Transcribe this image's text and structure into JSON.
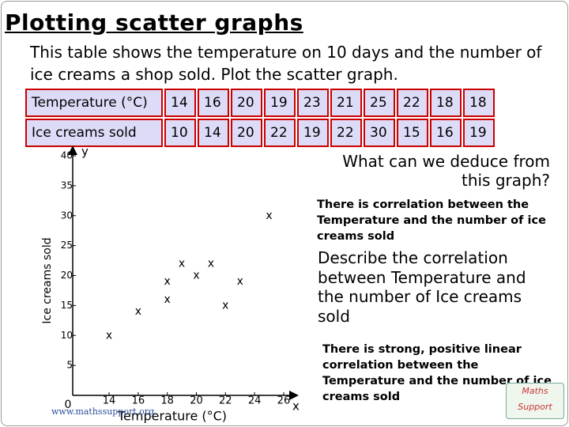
{
  "title": "Plotting scatter graphs",
  "intro": "This table shows the temperature on 10 days and the number of ice creams a shop sold. Plot the scatter graph.",
  "table": {
    "rows": [
      [
        "Temperature (°C)",
        14,
        16,
        20,
        19,
        23,
        21,
        25,
        22,
        18,
        18
      ],
      [
        "Ice creams sold",
        10,
        14,
        20,
        22,
        19,
        22,
        30,
        15,
        16,
        19
      ]
    ]
  },
  "chart_data": {
    "type": "scatter",
    "x_label": "Temperature (°C)",
    "y_label": "Ice creams sold",
    "x_axis_letter": "x",
    "y_axis_letter": "y",
    "origin_label": "0",
    "marker": "x",
    "series": [
      {
        "color": "#000000",
        "x": [
          14,
          16,
          20,
          19,
          23,
          21,
          25,
          22,
          18,
          18
        ],
        "values": [
          10,
          14,
          20,
          22,
          19,
          22,
          30,
          15,
          16,
          19
        ]
      }
    ],
    "xlim": [
      11.5,
      26.6
    ],
    "xticks": [
      14,
      16,
      18,
      20,
      22,
      24,
      26
    ],
    "ylim": [
      0,
      40
    ],
    "yticks": [
      5,
      10,
      15,
      20,
      25,
      30,
      35,
      40
    ],
    "grid": false
  },
  "questions": [
    {
      "question": "What can we deduce from this graph?",
      "answer": "There is correlation between the Temperature and the number of ice creams sold"
    },
    {
      "question": "Describe the correlation between Temperature and the number of Ice creams sold",
      "answer": "There is strong, positive linear correlation between the Temperature and the number of ice creams sold"
    }
  ],
  "footer": "www.mathssupport.org",
  "logo": "Maths Support"
}
